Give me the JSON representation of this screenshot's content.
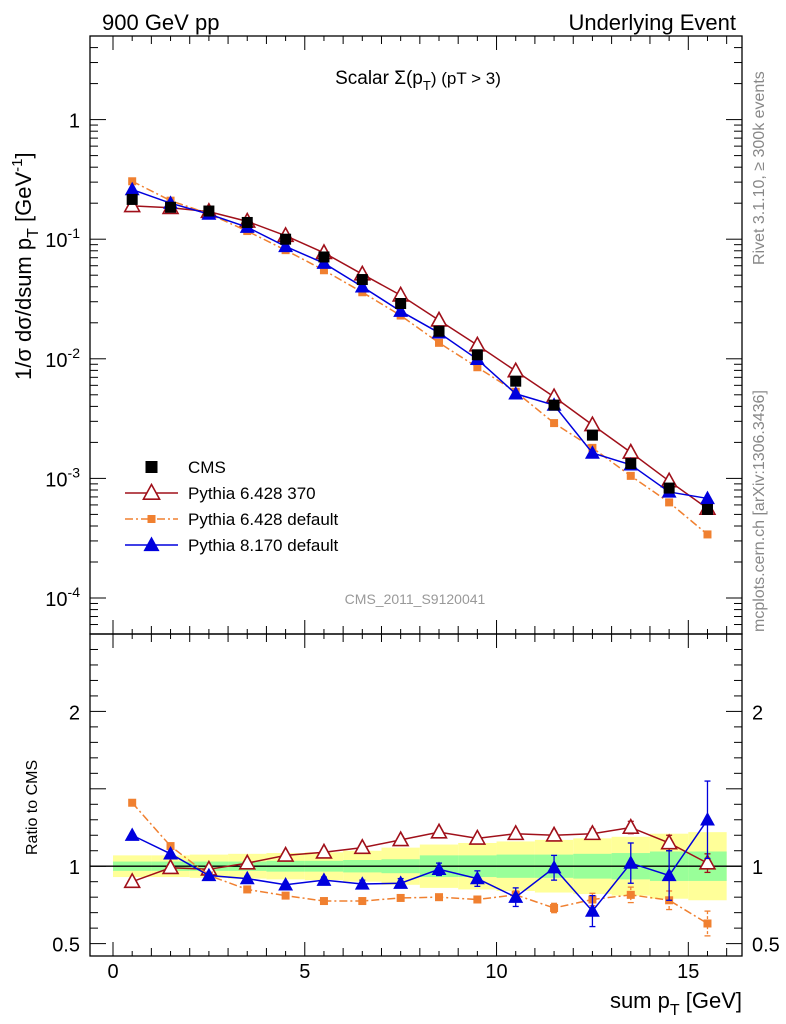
{
  "header": {
    "left": "900 GeV pp",
    "right": "Underlying Event"
  },
  "side_labels": {
    "rivet": "Rivet 3.1.10, ≥ 300k events",
    "mcplots": "mcplots.cern.ch [arXiv:1306.3436]"
  },
  "chart_data": [
    {
      "type": "scatter",
      "title": "Scalar Σ(p_T) (pT > 3)",
      "ylabel": "1/σ dσ/dsum p_T [GeV^-1]",
      "yscale": "log",
      "ylim": [
        5e-05,
        5
      ],
      "xlim": [
        -0.6,
        16.4
      ],
      "y_ticks": [
        "1",
        "10^-1",
        "10^-2",
        "10^-3",
        "10^-4"
      ],
      "analysis_label": "CMS_2011_S9120041",
      "legend_position": "lower-left",
      "x": [
        0.5,
        1.5,
        2.5,
        3.5,
        4.5,
        5.5,
        6.5,
        7.5,
        8.5,
        9.5,
        10.5,
        11.5,
        12.5,
        13.5,
        14.5,
        15.5
      ],
      "series": [
        {
          "name": "CMS",
          "color": "#000000",
          "marker": "square",
          "line": "none",
          "values": [
            0.215,
            0.185,
            0.172,
            0.138,
            0.1,
            0.071,
            0.046,
            0.029,
            0.017,
            0.0108,
            0.0065,
            0.0041,
            0.0023,
            0.00133,
            0.00083,
            0.00055
          ]
        },
        {
          "name": "Pythia 6.428 370",
          "color": "#a0101a",
          "marker": "open-triangle",
          "line": "solid",
          "values": [
            0.19,
            0.183,
            0.17,
            0.141,
            0.107,
            0.077,
            0.051,
            0.034,
            0.021,
            0.013,
            0.0079,
            0.0048,
            0.0028,
            0.00165,
            0.00095,
            0.00056
          ]
        },
        {
          "name": "Pythia 6.428 default",
          "color": "#f08030",
          "marker": "square",
          "line": "dashdot",
          "values": [
            0.305,
            0.21,
            0.163,
            0.117,
            0.081,
            0.055,
            0.036,
            0.023,
            0.0136,
            0.0085,
            0.0053,
            0.0029,
            0.0018,
            0.00105,
            0.00063,
            0.00034
          ]
        },
        {
          "name": "Pythia 8.170 default",
          "color": "#0000dd",
          "marker": "triangle",
          "line": "solid",
          "values": [
            0.26,
            0.2,
            0.162,
            0.126,
            0.087,
            0.063,
            0.04,
            0.025,
            0.0165,
            0.0099,
            0.0051,
            0.0041,
            0.00163,
            0.0013,
            0.00077,
            0.00068
          ]
        }
      ]
    },
    {
      "type": "scatter",
      "xlabel": "sum p_T [GeV]",
      "ylabel": "Ratio to CMS",
      "ylim": [
        0.42,
        2.5
      ],
      "xlim": [
        -0.6,
        16.4
      ],
      "x_ticks": [
        "0",
        "5",
        "10",
        "15"
      ],
      "y_ticks": [
        "0.5",
        "1",
        "2"
      ],
      "x": [
        0.5,
        1.5,
        2.5,
        3.5,
        4.5,
        5.5,
        6.5,
        7.5,
        8.5,
        9.5,
        10.5,
        11.5,
        12.5,
        13.5,
        14.5,
        15.5
      ],
      "bands": {
        "green_half_width": [
          0.03,
          0.03,
          0.03,
          0.03,
          0.035,
          0.035,
          0.04,
          0.045,
          0.07,
          0.07,
          0.075,
          0.075,
          0.08,
          0.085,
          0.095,
          0.095
        ],
        "yellow_half_width": [
          0.07,
          0.07,
          0.075,
          0.08,
          0.085,
          0.09,
          0.1,
          0.12,
          0.14,
          0.15,
          0.16,
          0.17,
          0.18,
          0.19,
          0.21,
          0.22
        ]
      },
      "series": [
        {
          "name": "Pythia 6.428 370",
          "values": [
            0.9,
            0.99,
            0.98,
            1.02,
            1.07,
            1.09,
            1.12,
            1.17,
            1.22,
            1.18,
            1.21,
            1.2,
            1.21,
            1.25,
            1.15,
            1.02
          ],
          "errors": [
            0.01,
            0.01,
            0.01,
            0.01,
            0.01,
            0.01,
            0.01,
            0.01,
            0.015,
            0.02,
            0.02,
            0.025,
            0.03,
            0.04,
            0.05,
            0.06
          ]
        },
        {
          "name": "Pythia 6.428 default",
          "values": [
            1.41,
            1.13,
            0.94,
            0.85,
            0.81,
            0.775,
            0.775,
            0.795,
            0.8,
            0.785,
            0.815,
            0.73,
            0.785,
            0.815,
            0.78,
            0.63
          ],
          "errors": [
            0.01,
            0.01,
            0.01,
            0.01,
            0.01,
            0.01,
            0.01,
            0.015,
            0.015,
            0.02,
            0.025,
            0.03,
            0.04,
            0.05,
            0.06,
            0.08
          ]
        },
        {
          "name": "Pythia 8.170 default",
          "values": [
            1.2,
            1.08,
            0.94,
            0.92,
            0.88,
            0.91,
            0.885,
            0.89,
            0.98,
            0.92,
            0.8,
            0.99,
            0.71,
            1.02,
            0.94,
            1.3
          ],
          "errors": [
            0.01,
            0.01,
            0.01,
            0.015,
            0.015,
            0.02,
            0.025,
            0.03,
            0.04,
            0.05,
            0.06,
            0.08,
            0.1,
            0.13,
            0.16,
            0.25
          ]
        }
      ]
    }
  ]
}
